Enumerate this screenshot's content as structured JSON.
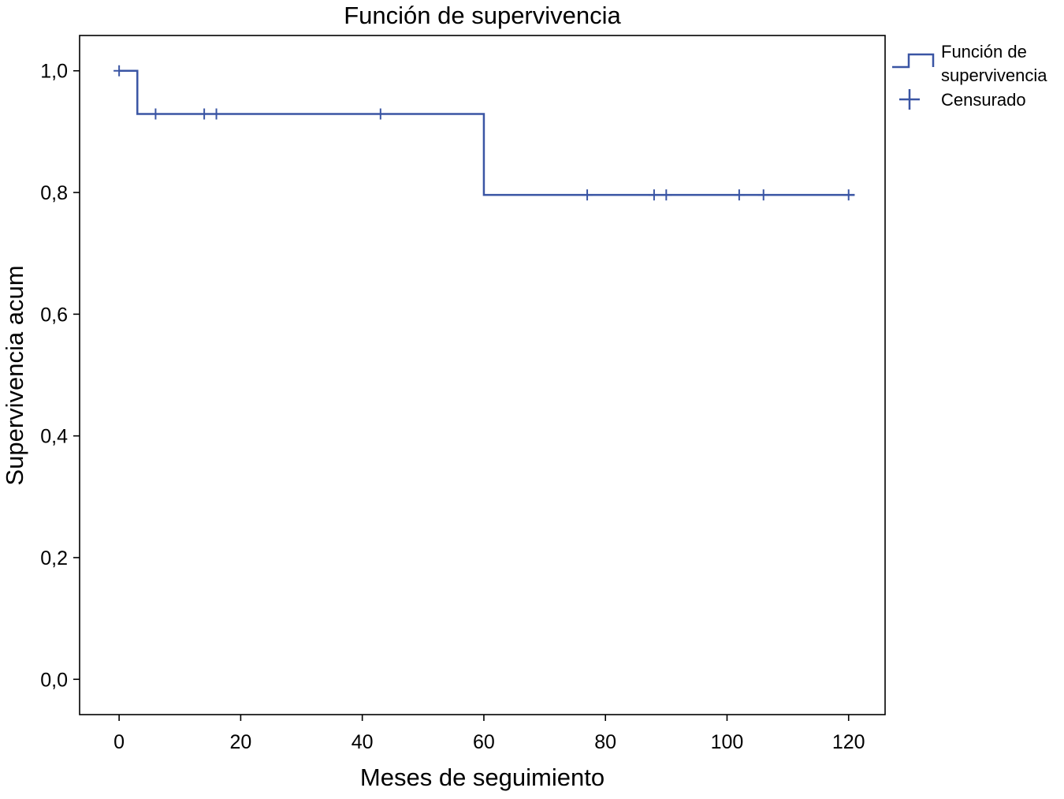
{
  "chart_data": {
    "type": "line",
    "subtype": "kaplan-meier-step",
    "title": "Función de supervivencia",
    "xlabel": "Meses de seguimiento",
    "ylabel": "Supervivencia acum",
    "xlim": [
      -6.5,
      126
    ],
    "ylim": [
      -0.058,
      1.058
    ],
    "x_ticks": [
      0,
      20,
      40,
      60,
      80,
      100,
      120
    ],
    "y_ticks": [
      0.0,
      0.2,
      0.4,
      0.6,
      0.8,
      1.0
    ],
    "x_tick_labels": [
      "0",
      "20",
      "40",
      "60",
      "80",
      "100",
      "120"
    ],
    "y_tick_labels": [
      "0,0",
      "0,2",
      "0,4",
      "0,6",
      "0,8",
      "1,0"
    ],
    "grid": false,
    "legend_position": "outside-top-right",
    "series": [
      {
        "name": "Función de supervivencia",
        "color": "#3a55a4",
        "steps": [
          {
            "x": 0,
            "y": 1.0
          },
          {
            "x": 3,
            "y": 0.929
          },
          {
            "x": 60,
            "y": 0.796
          },
          {
            "x": 121,
            "y": 0.796
          }
        ]
      }
    ],
    "censored": {
      "name": "Censurado",
      "color": "#3a55a4",
      "points": [
        {
          "x": 0,
          "y": 1.0
        },
        {
          "x": 6,
          "y": 0.929
        },
        {
          "x": 14,
          "y": 0.929
        },
        {
          "x": 16,
          "y": 0.929
        },
        {
          "x": 43,
          "y": 0.929
        },
        {
          "x": 77,
          "y": 0.796
        },
        {
          "x": 88,
          "y": 0.796
        },
        {
          "x": 90,
          "y": 0.796
        },
        {
          "x": 102,
          "y": 0.796
        },
        {
          "x": 106,
          "y": 0.796
        },
        {
          "x": 120,
          "y": 0.796
        }
      ]
    },
    "legend": {
      "line_label_line1": "Función de",
      "line_label_line2": "supervivencia",
      "censored_label": "Censurado"
    }
  }
}
